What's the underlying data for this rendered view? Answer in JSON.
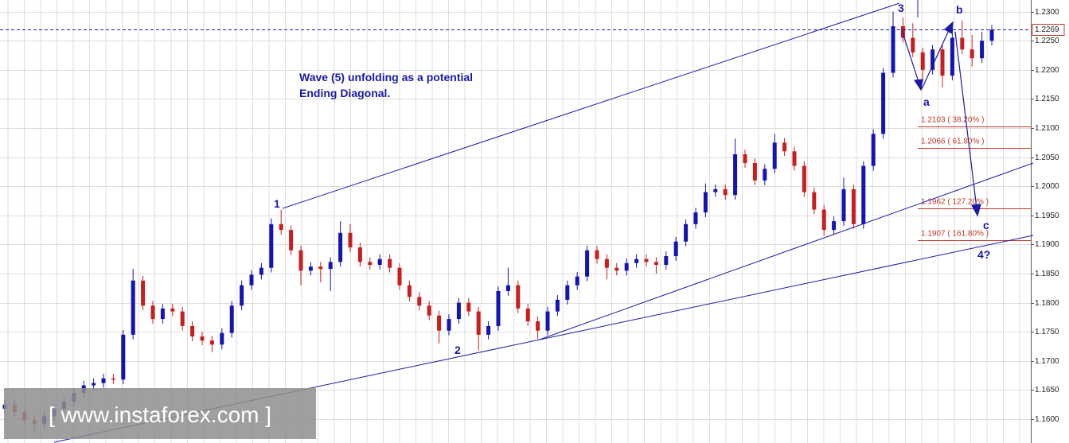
{
  "chart_data": {
    "type": "candlestick",
    "open": [
      1.1618,
      1.1625,
      1.1612,
      1.1598,
      1.1592,
      1.1605,
      1.1618,
      1.163,
      1.1645,
      1.1658,
      1.1662,
      1.167,
      1.1668,
      1.1745,
      1.1838,
      1.1795,
      1.1772,
      1.179,
      1.1785,
      1.176,
      1.1742,
      1.1735,
      1.1728,
      1.1748,
      1.1795,
      1.183,
      1.1848,
      1.186,
      1.1935,
      1.1925,
      1.189,
      1.1855,
      1.1862,
      1.1858,
      1.187,
      1.192,
      1.1895,
      1.187,
      1.1865,
      1.1875,
      1.186,
      1.183,
      1.181,
      1.1795,
      1.1778,
      1.1752,
      1.1772,
      1.18,
      1.1785,
      1.1745,
      1.176,
      1.182,
      1.183,
      1.179,
      1.1768,
      1.1752,
      1.1785,
      1.1805,
      1.183,
      1.1845,
      1.189,
      1.1875,
      1.186,
      1.1855,
      1.1868,
      1.1875,
      1.187,
      1.1865,
      1.188,
      1.1905,
      1.1935,
      1.1955,
      1.199,
      1.1995,
      1.1985,
      1.2055,
      1.204,
      1.201,
      1.203,
      1.2075,
      1.206,
      1.2035,
      1.199,
      1.196,
      1.1925,
      1.194,
      1.1995,
      1.1935,
      1.2035,
      1.209,
      1.2195,
      1.2275,
      1.2255,
      1.223,
      1.22,
      1.2235,
      1.219,
      1.2255,
      1.2235,
      1.222,
      1.225
    ],
    "high": [
      1.1633,
      1.1633,
      1.162,
      1.1606,
      1.1613,
      1.1626,
      1.1638,
      1.1653,
      1.1666,
      1.167,
      1.1678,
      1.1678,
      1.1753,
      1.1858,
      1.1846,
      1.1803,
      1.1798,
      1.1798,
      1.1793,
      1.1768,
      1.175,
      1.1743,
      1.1756,
      1.1803,
      1.1838,
      1.1856,
      1.1868,
      1.1945,
      1.196,
      1.1933,
      1.1898,
      1.187,
      1.187,
      1.1878,
      1.194,
      1.1935,
      1.1903,
      1.1878,
      1.1883,
      1.1883,
      1.1868,
      1.1838,
      1.1818,
      1.1803,
      1.1786,
      1.178,
      1.1808,
      1.1808,
      1.1793,
      1.1768,
      1.1828,
      1.186,
      1.1838,
      1.1798,
      1.1776,
      1.1793,
      1.1813,
      1.1838,
      1.1853,
      1.1898,
      1.1898,
      1.1883,
      1.1868,
      1.1876,
      1.1883,
      1.1883,
      1.1878,
      1.1888,
      1.1913,
      1.1943,
      1.1963,
      1.2005,
      1.2003,
      1.2003,
      1.2082,
      1.2063,
      1.2048,
      1.2038,
      1.209,
      1.2083,
      1.2068,
      1.2043,
      1.1998,
      1.1968,
      1.1948,
      1.2015,
      1.2003,
      1.2043,
      1.2098,
      1.2203,
      1.23,
      1.229,
      1.228,
      1.2238,
      1.2243,
      1.2243,
      1.228,
      1.2285,
      1.226,
      1.2265,
      1.2277
    ],
    "low": [
      1.161,
      1.1604,
      1.159,
      1.1578,
      1.1584,
      1.1597,
      1.161,
      1.1622,
      1.1637,
      1.165,
      1.1654,
      1.166,
      1.166,
      1.1737,
      1.1787,
      1.1764,
      1.1764,
      1.1777,
      1.1752,
      1.1734,
      1.1727,
      1.1715,
      1.172,
      1.174,
      1.1787,
      1.1822,
      1.184,
      1.1852,
      1.1917,
      1.1882,
      1.183,
      1.1847,
      1.1835,
      1.182,
      1.1862,
      1.1887,
      1.1862,
      1.1857,
      1.1857,
      1.1852,
      1.1822,
      1.1802,
      1.1787,
      1.177,
      1.173,
      1.1744,
      1.1764,
      1.1777,
      1.1718,
      1.1737,
      1.1752,
      1.1812,
      1.1782,
      1.176,
      1.1738,
      1.1744,
      1.1777,
      1.1797,
      1.1822,
      1.1837,
      1.1867,
      1.184,
      1.1847,
      1.1847,
      1.186,
      1.1862,
      1.185,
      1.1857,
      1.1872,
      1.1897,
      1.1927,
      1.1947,
      1.1982,
      1.1977,
      1.1977,
      1.2032,
      1.2002,
      1.2002,
      1.2022,
      1.2052,
      1.2027,
      1.1982,
      1.1952,
      1.1915,
      1.1917,
      1.1932,
      1.1927,
      1.1927,
      1.2027,
      1.2082,
      1.2187,
      1.2247,
      1.2222,
      1.218,
      1.2192,
      1.217,
      1.2182,
      1.2227,
      1.2205,
      1.2212,
      1.2242
    ],
    "close": [
      1.1625,
      1.1612,
      1.1598,
      1.1592,
      1.1605,
      1.1618,
      1.163,
      1.1645,
      1.1658,
      1.1662,
      1.167,
      1.1668,
      1.1745,
      1.1838,
      1.1795,
      1.1772,
      1.179,
      1.1785,
      1.176,
      1.1742,
      1.1735,
      1.1728,
      1.1748,
      1.1795,
      1.183,
      1.1848,
      1.186,
      1.1935,
      1.1925,
      1.189,
      1.1855,
      1.1862,
      1.1858,
      1.187,
      1.192,
      1.1895,
      1.187,
      1.1865,
      1.1875,
      1.186,
      1.183,
      1.181,
      1.1795,
      1.1778,
      1.1752,
      1.1772,
      1.18,
      1.1785,
      1.1745,
      1.176,
      1.182,
      1.183,
      1.179,
      1.1768,
      1.1752,
      1.1785,
      1.1805,
      1.183,
      1.1845,
      1.189,
      1.1875,
      1.186,
      1.1855,
      1.1868,
      1.1875,
      1.187,
      1.1865,
      1.188,
      1.1905,
      1.1935,
      1.1955,
      1.199,
      1.1995,
      1.1985,
      1.2055,
      1.204,
      1.201,
      1.203,
      1.2075,
      1.206,
      1.2035,
      1.199,
      1.196,
      1.1925,
      1.194,
      1.1995,
      1.1935,
      1.2035,
      1.209,
      1.2195,
      1.2275,
      1.2255,
      1.223,
      1.22,
      1.2235,
      1.219,
      1.2255,
      1.2235,
      1.222,
      1.225,
      1.2269
    ],
    "up_color": "#1414b4",
    "down_color": "#c81e1e",
    "ylim": [
      1.1559,
      1.232
    ],
    "yticks": [
      {
        "value": 1.16,
        "label": "1.1600"
      },
      {
        "value": 1.165,
        "label": "1.1650"
      },
      {
        "value": 1.17,
        "label": "1.1700"
      },
      {
        "value": 1.175,
        "label": "1.1750"
      },
      {
        "value": 1.18,
        "label": "1.1800"
      },
      {
        "value": 1.185,
        "label": "1.1850"
      },
      {
        "value": 1.19,
        "label": "1.1900"
      },
      {
        "value": 1.195,
        "label": "1.1950"
      },
      {
        "value": 1.2,
        "label": "1.2000"
      },
      {
        "value": 1.205,
        "label": "1.2050"
      },
      {
        "value": 1.21,
        "label": "1.2100"
      },
      {
        "value": 1.215,
        "label": "1.2150"
      },
      {
        "value": 1.22,
        "label": "1.2200"
      },
      {
        "value": 1.225,
        "label": "1.2250"
      },
      {
        "value": 1.23,
        "label": "1.2300"
      }
    ],
    "grid": true,
    "last_price": {
      "value": 1.2269,
      "label": "1.2269"
    },
    "fib_levels": [
      {
        "value": 1.2103,
        "label": "1.2103 ( 38.20% )"
      },
      {
        "value": 1.2066,
        "label": "1.2066 ( 61.80% )"
      },
      {
        "value": 1.1962,
        "label": "1.1962 ( 127.20% )"
      },
      {
        "value": 1.1907,
        "label": "1.1907 ( 161.80% )"
      }
    ],
    "annotation": [
      "Wave (5) unfolding as a potential",
      "Ending Diagonal."
    ],
    "wave_labels": [
      "1",
      "2",
      "3",
      "a",
      "b",
      "c",
      "4?"
    ],
    "watermark": "[ www.instaforex.com ]"
  }
}
